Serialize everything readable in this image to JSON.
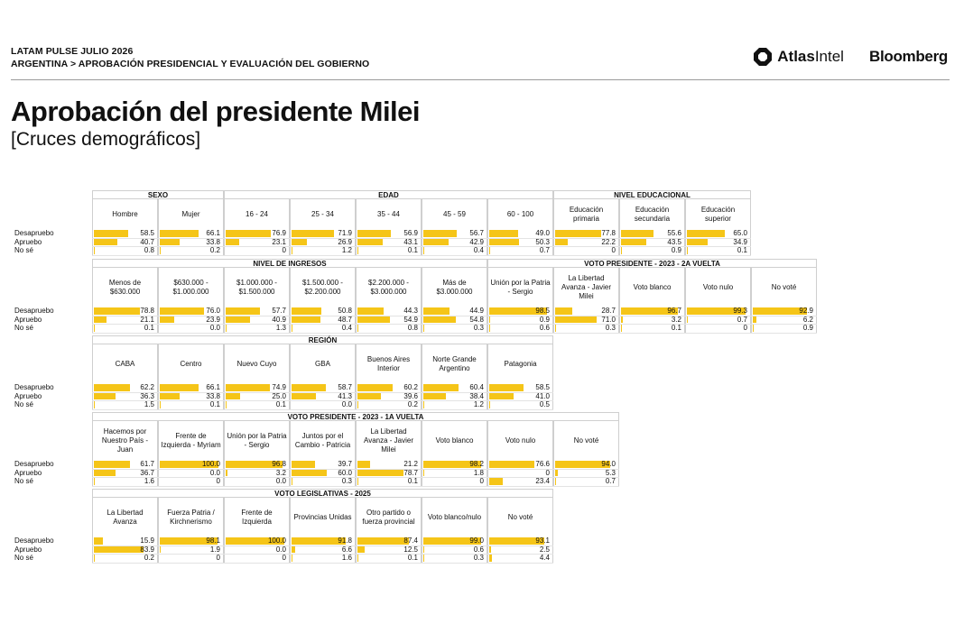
{
  "header": {
    "line1": "LATAM PULSE JULIO 2026",
    "line2": "ARGENTINA > APROBACIÓN PRESIDENCIAL Y EVALUACIÓN DEL GOBIERNO",
    "logo_atlas_a": "Atlas",
    "logo_atlas_b": "Intel",
    "logo_bloomberg": "Bloomberg"
  },
  "title": "Aprobación del presidente Milei",
  "subtitle": "[Cruces demográficos]",
  "row_labels": [
    "Desapruebo",
    "Apruebo",
    "No sé"
  ],
  "colors": {
    "bar": "#f5c518",
    "border": "#cfcfcf"
  },
  "chart_data": [
    {
      "type": "table",
      "groups": [
        {
          "title": "SEXO",
          "columns": [
            {
              "label": "Hombre",
              "values": [
                "58.5",
                "40.7",
                "0.8"
              ]
            },
            {
              "label": "Mujer",
              "values": [
                "66.1",
                "33.8",
                "0.2"
              ]
            }
          ]
        },
        {
          "title": "EDAD",
          "columns": [
            {
              "label": "16 - 24",
              "values": [
                "76.9",
                "23.1",
                "0"
              ]
            },
            {
              "label": "25 - 34",
              "values": [
                "71.9",
                "26.9",
                "1.2"
              ]
            },
            {
              "label": "35 - 44",
              "values": [
                "56.9",
                "43.1",
                "0.1"
              ]
            },
            {
              "label": "45 - 59",
              "values": [
                "56.7",
                "42.9",
                "0.4"
              ]
            },
            {
              "label": "60 - 100",
              "values": [
                "49.0",
                "50.3",
                "0.7"
              ]
            }
          ]
        },
        {
          "title": "NIVEL EDUCACIONAL",
          "columns": [
            {
              "label": "Educación primaria",
              "values": [
                "77.8",
                "22.2",
                "0"
              ]
            },
            {
              "label": "Educación secundaria",
              "values": [
                "55.6",
                "43.5",
                "0.9"
              ]
            },
            {
              "label": "Educación superior",
              "values": [
                "65.0",
                "34.9",
                "0.1"
              ]
            }
          ]
        }
      ]
    },
    {
      "type": "table",
      "groups": [
        {
          "title": "NIVEL DE INGRESOS",
          "columns": [
            {
              "label": "Menos de $630.000",
              "values": [
                "78.8",
                "21.1",
                "0.1"
              ]
            },
            {
              "label": "$630.000 - $1.000.000",
              "values": [
                "76.0",
                "23.9",
                "0.0"
              ]
            },
            {
              "label": "$1.000.000 - $1.500.000",
              "values": [
                "57.7",
                "40.9",
                "1.3"
              ]
            },
            {
              "label": "$1.500.000 - $2.200.000",
              "values": [
                "50.8",
                "48.7",
                "0.4"
              ]
            },
            {
              "label": "$2.200.000 - $3.000.000",
              "values": [
                "44.3",
                "54.9",
                "0.8"
              ]
            },
            {
              "label": "Más de $3.000.000",
              "values": [
                "44.9",
                "54.8",
                "0.3"
              ]
            }
          ]
        },
        {
          "title": "VOTO PRESIDENTE - 2023 - 2A VUELTA",
          "columns": [
            {
              "label": "Unión por la Patria - Sergio",
              "values": [
                "98.5",
                "0.9",
                "0.6"
              ]
            },
            {
              "label": "La Libertad Avanza - Javier Milei",
              "values": [
                "28.7",
                "71.0",
                "0.3"
              ]
            },
            {
              "label": "Voto blanco",
              "values": [
                "96.7",
                "3.2",
                "0.1"
              ]
            },
            {
              "label": "Voto nulo",
              "values": [
                "99.3",
                "0.7",
                "0"
              ]
            },
            {
              "label": "No voté",
              "values": [
                "92.9",
                "6.2",
                "0.9"
              ]
            }
          ]
        }
      ]
    },
    {
      "type": "table",
      "groups": [
        {
          "title": "REGIÓN",
          "columns": [
            {
              "label": "CABA",
              "values": [
                "62.2",
                "36.3",
                "1.5"
              ]
            },
            {
              "label": "Centro",
              "values": [
                "66.1",
                "33.8",
                "0.1"
              ]
            },
            {
              "label": "Nuevo Cuyo",
              "values": [
                "74.9",
                "25.0",
                "0.1"
              ]
            },
            {
              "label": "GBA",
              "values": [
                "58.7",
                "41.3",
                "0.0"
              ]
            },
            {
              "label": "Buenos Aires Interior",
              "values": [
                "60.2",
                "39.6",
                "0.2"
              ]
            },
            {
              "label": "Norte Grande Argentino",
              "values": [
                "60.4",
                "38.4",
                "1.2"
              ]
            },
            {
              "label": "Patagonia",
              "values": [
                "58.5",
                "41.0",
                "0.5"
              ]
            }
          ]
        }
      ]
    },
    {
      "type": "table",
      "groups": [
        {
          "title": "VOTO PRESIDENTE - 2023 - 1A VUELTA",
          "columns": [
            {
              "label": "Hacemos por Nuestro País - Juan",
              "values": [
                "61.7",
                "36.7",
                "1.6"
              ]
            },
            {
              "label": "Frente de Izquierda - Myriam",
              "values": [
                "100.0",
                "0.0",
                "0"
              ]
            },
            {
              "label": "Unión por la Patria - Sergio",
              "values": [
                "96.8",
                "3.2",
                "0.0"
              ]
            },
            {
              "label": "Juntos por el Cambio - Patricia",
              "values": [
                "39.7",
                "60.0",
                "0.3"
              ]
            },
            {
              "label": "La Libertad Avanza - Javier Milei",
              "values": [
                "21.2",
                "78.7",
                "0.1"
              ]
            },
            {
              "label": "Voto blanco",
              "values": [
                "98.2",
                "1.8",
                "0"
              ]
            },
            {
              "label": "Voto nulo",
              "values": [
                "76.6",
                "0",
                "23.4"
              ]
            },
            {
              "label": "No voté",
              "values": [
                "94.0",
                "5.3",
                "0.7"
              ]
            }
          ]
        }
      ]
    },
    {
      "type": "table",
      "groups": [
        {
          "title": "VOTO LEGISLATIVAS - 2025",
          "columns": [
            {
              "label": "La Libertad Avanza",
              "values": [
                "15.9",
                "83.9",
                "0.2"
              ]
            },
            {
              "label": "Fuerza Patria / Kirchnerismo",
              "values": [
                "98.1",
                "1.9",
                "0"
              ]
            },
            {
              "label": "Frente de Izquierda",
              "values": [
                "100.0",
                "0.0",
                "0"
              ]
            },
            {
              "label": "Provincias Unidas",
              "values": [
                "91.8",
                "6.6",
                "1.6"
              ]
            },
            {
              "label": "Otro partido o fuerza provincial",
              "values": [
                "87.4",
                "12.5",
                "0.1"
              ]
            },
            {
              "label": "Voto blanco/nulo",
              "values": [
                "99.0",
                "0.6",
                "0.3"
              ]
            },
            {
              "label": "No voté",
              "values": [
                "93.1",
                "2.5",
                "4.4"
              ]
            }
          ]
        }
      ]
    }
  ]
}
